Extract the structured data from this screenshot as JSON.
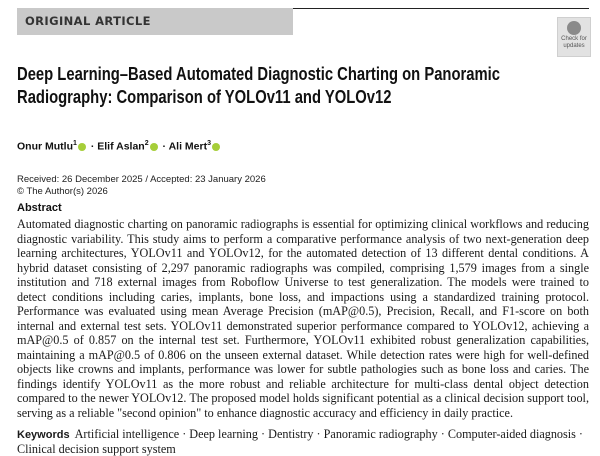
{
  "article_type": "ORIGINAL ARTICLE",
  "check_updates": {
    "line1": "Check for",
    "line2": "updates"
  },
  "title": "Deep Learning–Based Automated Diagnostic Charting on Panoramic Radiography: Comparison of YOLOv11 and YOLOv12",
  "authors": [
    {
      "name": "Onur Mutlu",
      "affil": "1"
    },
    {
      "name": "Elif Aslan",
      "affil": "2"
    },
    {
      "name": "Ali Mert",
      "affil": "3"
    }
  ],
  "author_separator": " · ",
  "orcid_color": "#a6ce39",
  "received": "Received: 26 December 2025 / Accepted: 23 January 2026",
  "copyright": "© The Author(s) 2026",
  "abstract_heading": "Abstract",
  "abstract": "Automated diagnostic charting on panoramic radiographs is essential for optimizing clinical workflows and reducing diagnostic variability. This study aims to perform a comparative performance analysis of two next-generation deep learning architectures, YOLOv11 and YOLOv12, for the automated detection of 13 different dental conditions. A hybrid dataset consisting of 2,297 panoramic radiographs was compiled, comprising 1,579 images from a single institution and 718 external images from Roboflow Universe to test generalization. The models were trained to detect conditions including caries, implants, bone loss, and impactions using a standardized training protocol. Performance was evaluated using mean Average Precision (mAP@0.5), Precision, Recall, and F1-score on both internal and external test sets. YOLOv11 demonstrated superior performance compared to YOLOv12, achieving a mAP@0.5 of 0.857 on the internal test set. Furthermore, YOLOv11 exhibited robust generalization capabilities, maintaining a mAP@0.5 of 0.806 on the unseen external dataset. While detection rates were high for well-defined objects like crowns and implants, performance was lower for subtle pathologies such as bone loss and caries. The findings identify YOLOv11 as the more robust and reliable architecture for multi-class dental object detection compared to the newer YOLOv12. The proposed model holds significant potential as a clinical decision support tool, serving as a reliable \"second opinion\" to enhance diagnostic accuracy and efficiency in daily practice.",
  "keywords_label": "Keywords",
  "keywords": "Artificial intelligence · Deep learning · Dentistry · Panoramic radiography · Computer-aided diagnosis · Clinical decision support system"
}
